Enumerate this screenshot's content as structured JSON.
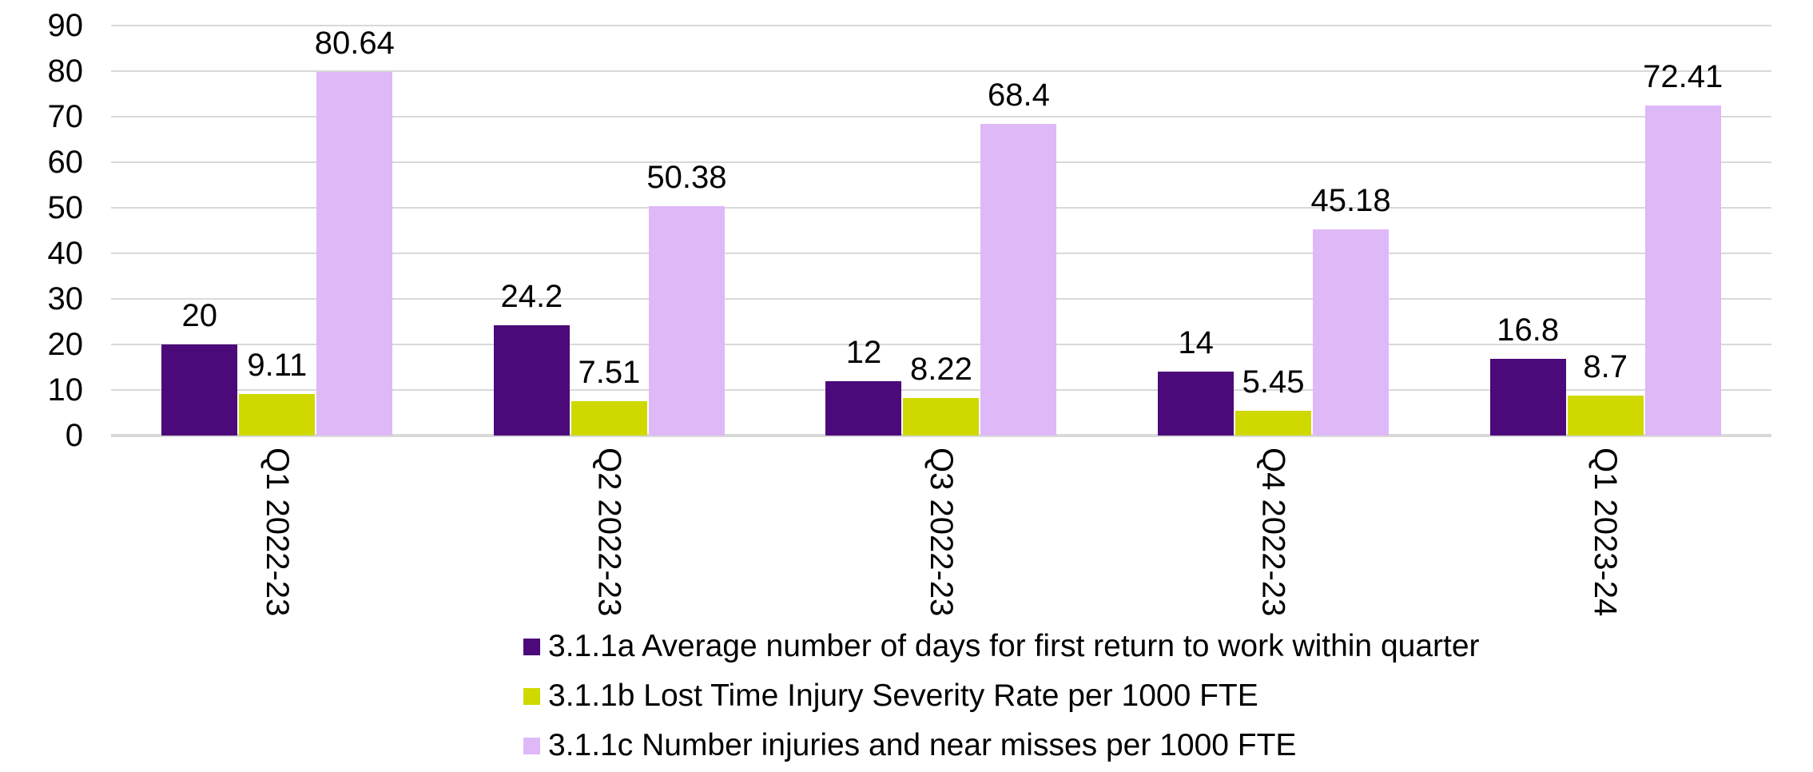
{
  "chart_data": {
    "type": "bar",
    "title": "",
    "xlabel": "",
    "ylabel": "",
    "ylim": [
      0,
      90
    ],
    "yticks": [
      0,
      10,
      20,
      30,
      40,
      50,
      60,
      70,
      80,
      90
    ],
    "grid": true,
    "legend_position": "bottom-left",
    "background_color": "#FFFFFF",
    "gridline_color": "#D9D9D9",
    "axis_line_color": "#D9D9D9",
    "text_color": "#000000",
    "categories": [
      "Q1 2022-23",
      "Q2 2022-23",
      "Q3 2022-23",
      "Q4 2022-23",
      "Q1 2023-24"
    ],
    "series": [
      {
        "id": "3-1-1a",
        "name": "3.1.1a Average number of days for first return to work within quarter",
        "color": "#4B0979",
        "values": [
          20,
          24.2,
          12,
          14,
          16.8
        ],
        "labels": [
          "20",
          "24.2",
          "12",
          "14",
          "16.8"
        ]
      },
      {
        "id": "3-1-1b",
        "name": "3.1.1b Lost Time Injury Severity Rate per 1000 FTE",
        "color": "#CFD900",
        "values": [
          9.11,
          7.51,
          8.22,
          5.45,
          8.7
        ],
        "labels": [
          "9.11",
          "7.51",
          "8.22",
          "5.45",
          "8.7"
        ]
      },
      {
        "id": "3-1-1c",
        "name": "3.1.1c Number injuries and near misses per 1000 FTE",
        "color": "#DFB8F7",
        "values": [
          80.64,
          50.38,
          68.4,
          45.18,
          72.41
        ],
        "labels": [
          "80.64",
          "50.38",
          "68.4",
          "45.18",
          "72.41"
        ]
      }
    ]
  }
}
